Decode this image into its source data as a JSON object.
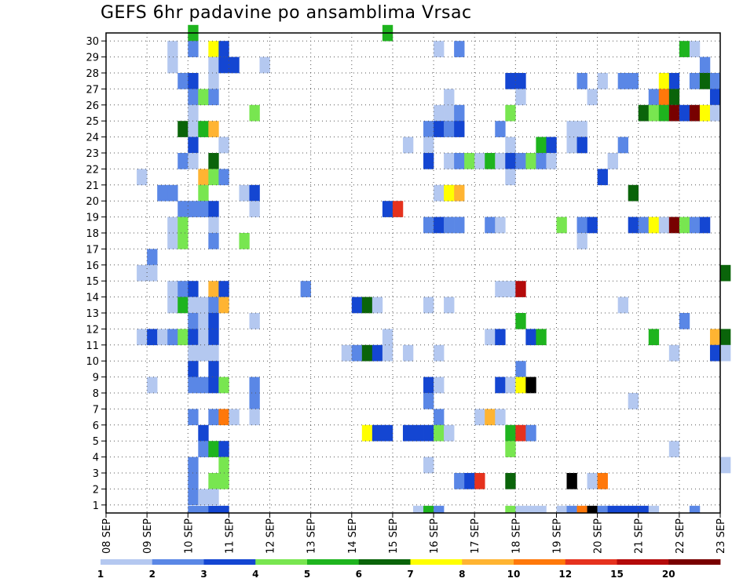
{
  "chart_data": {
    "type": "heatmap",
    "title": "GEFS 6hr padavine po ansamblima Vrsac",
    "xlabel": "",
    "ylabel": "",
    "x_tick_labels": [
      "08 SEP",
      "09 SEP",
      "10 SEP",
      "11 SEP",
      "12 SEP",
      "13 SEP",
      "14 SEP",
      "15 SEP",
      "16 SEP",
      "17 SEP",
      "18 SEP",
      "19 SEP",
      "20 SEP",
      "21 SEP",
      "22 SEP",
      "23 SEP"
    ],
    "y_tick_labels": [
      "1",
      "2",
      "3",
      "4",
      "5",
      "6",
      "7",
      "8",
      "9",
      "10",
      "11",
      "12",
      "13",
      "14",
      "15",
      "16",
      "17",
      "18",
      "19",
      "20",
      "21",
      "22",
      "23",
      "24",
      "25",
      "26",
      "27",
      "28",
      "29",
      "30"
    ],
    "ylim": [
      0,
      30
    ],
    "x_steps_per_day": 4,
    "grid": true,
    "colorbar": {
      "labels": [
        "1",
        "2",
        "3",
        "4",
        "5",
        "6",
        "7",
        "8",
        "10",
        "12",
        "15",
        "20"
      ],
      "colors": [
        "#b4c8f0",
        "#5a87e6",
        "#1446d2",
        "#78e650",
        "#1eb41e",
        "#0a640a",
        "#ffff00",
        "#ffb432",
        "#ff780a",
        "#e6321e",
        "#b40a0a",
        "#780000"
      ]
    },
    "cells": [
      [
        8,
        30,
        5
      ],
      [
        27,
        30,
        5
      ],
      [
        6,
        29,
        1
      ],
      [
        8,
        29,
        2
      ],
      [
        10,
        29,
        7
      ],
      [
        11,
        29,
        3
      ],
      [
        32,
        29,
        1
      ],
      [
        34,
        29,
        2
      ],
      [
        56,
        29,
        5
      ],
      [
        57,
        29,
        1
      ],
      [
        6,
        28,
        1
      ],
      [
        10,
        28,
        1
      ],
      [
        11,
        28,
        3
      ],
      [
        12,
        28,
        3
      ],
      [
        15,
        28,
        1
      ],
      [
        58,
        28,
        2
      ],
      [
        7,
        27,
        2
      ],
      [
        8,
        27,
        3
      ],
      [
        10,
        27,
        1
      ],
      [
        39,
        27,
        3
      ],
      [
        40,
        27,
        3
      ],
      [
        46,
        27,
        2
      ],
      [
        48,
        27,
        1
      ],
      [
        50,
        27,
        2
      ],
      [
        51,
        27,
        2
      ],
      [
        54,
        27,
        7
      ],
      [
        55,
        27,
        3
      ],
      [
        57,
        27,
        2
      ],
      [
        58,
        27,
        6
      ],
      [
        59,
        27,
        2
      ],
      [
        8,
        26,
        2
      ],
      [
        9,
        26,
        4
      ],
      [
        10,
        26,
        2
      ],
      [
        33,
        26,
        1
      ],
      [
        40,
        26,
        1
      ],
      [
        47,
        26,
        1
      ],
      [
        53,
        26,
        2
      ],
      [
        54,
        26,
        9
      ],
      [
        55,
        26,
        6
      ],
      [
        59,
        26,
        3
      ],
      [
        8,
        25,
        1
      ],
      [
        14,
        25,
        4
      ],
      [
        32,
        25,
        1
      ],
      [
        33,
        25,
        1
      ],
      [
        34,
        25,
        2
      ],
      [
        39,
        25,
        4
      ],
      [
        52,
        25,
        6
      ],
      [
        53,
        25,
        4
      ],
      [
        54,
        25,
        5
      ],
      [
        55,
        25,
        12
      ],
      [
        56,
        25,
        3
      ],
      [
        57,
        25,
        12
      ],
      [
        58,
        25,
        7
      ],
      [
        59,
        25,
        1
      ],
      [
        7,
        24,
        6
      ],
      [
        8,
        24,
        1
      ],
      [
        9,
        24,
        5
      ],
      [
        10,
        24,
        8
      ],
      [
        31,
        24,
        2
      ],
      [
        32,
        24,
        3
      ],
      [
        33,
        24,
        2
      ],
      [
        34,
        24,
        3
      ],
      [
        38,
        24,
        2
      ],
      [
        45,
        24,
        1
      ],
      [
        46,
        24,
        1
      ],
      [
        8,
        23,
        3
      ],
      [
        11,
        23,
        1
      ],
      [
        29,
        23,
        1
      ],
      [
        31,
        23,
        1
      ],
      [
        39,
        23,
        1
      ],
      [
        42,
        23,
        5
      ],
      [
        43,
        23,
        3
      ],
      [
        45,
        23,
        1
      ],
      [
        46,
        23,
        3
      ],
      [
        50,
        23,
        2
      ],
      [
        7,
        22,
        2
      ],
      [
        8,
        22,
        1
      ],
      [
        10,
        22,
        6
      ],
      [
        31,
        22,
        3
      ],
      [
        33,
        22,
        1
      ],
      [
        34,
        22,
        2
      ],
      [
        35,
        22,
        4
      ],
      [
        36,
        22,
        1
      ],
      [
        37,
        22,
        5
      ],
      [
        38,
        22,
        1
      ],
      [
        39,
        22,
        3
      ],
      [
        40,
        22,
        2
      ],
      [
        41,
        22,
        4
      ],
      [
        42,
        22,
        2
      ],
      [
        43,
        22,
        1
      ],
      [
        49,
        22,
        1
      ],
      [
        3,
        21,
        1
      ],
      [
        9,
        21,
        8
      ],
      [
        10,
        21,
        4
      ],
      [
        11,
        21,
        2
      ],
      [
        39,
        21,
        1
      ],
      [
        48,
        21,
        3
      ],
      [
        5,
        20,
        2
      ],
      [
        6,
        20,
        2
      ],
      [
        9,
        20,
        4
      ],
      [
        13,
        20,
        1
      ],
      [
        14,
        20,
        3
      ],
      [
        32,
        20,
        1
      ],
      [
        33,
        20,
        7
      ],
      [
        34,
        20,
        8
      ],
      [
        51,
        20,
        6
      ],
      [
        7,
        19,
        2
      ],
      [
        8,
        19,
        2
      ],
      [
        9,
        19,
        2
      ],
      [
        10,
        19,
        3
      ],
      [
        14,
        19,
        1
      ],
      [
        27,
        19,
        3
      ],
      [
        28,
        19,
        10
      ],
      [
        6,
        18,
        1
      ],
      [
        7,
        18,
        4
      ],
      [
        10,
        18,
        1
      ],
      [
        31,
        18,
        2
      ],
      [
        32,
        18,
        3
      ],
      [
        33,
        18,
        2
      ],
      [
        34,
        18,
        2
      ],
      [
        37,
        18,
        2
      ],
      [
        38,
        18,
        1
      ],
      [
        44,
        18,
        4
      ],
      [
        46,
        18,
        2
      ],
      [
        47,
        18,
        3
      ],
      [
        51,
        18,
        3
      ],
      [
        52,
        18,
        2
      ],
      [
        53,
        18,
        7
      ],
      [
        54,
        18,
        1
      ],
      [
        55,
        18,
        12
      ],
      [
        56,
        18,
        4
      ],
      [
        57,
        18,
        2
      ],
      [
        58,
        18,
        3
      ],
      [
        6,
        17,
        1
      ],
      [
        7,
        17,
        4
      ],
      [
        10,
        17,
        2
      ],
      [
        13,
        17,
        4
      ],
      [
        46,
        17,
        1
      ],
      [
        4,
        16,
        2
      ],
      [
        3,
        15,
        1
      ],
      [
        4,
        15,
        1
      ],
      [
        60,
        15,
        6
      ],
      [
        6,
        14,
        1
      ],
      [
        7,
        14,
        2
      ],
      [
        8,
        14,
        3
      ],
      [
        10,
        14,
        8
      ],
      [
        11,
        14,
        3
      ],
      [
        19,
        14,
        2
      ],
      [
        38,
        14,
        1
      ],
      [
        39,
        14,
        1
      ],
      [
        40,
        14,
        11
      ],
      [
        6,
        13,
        1
      ],
      [
        7,
        13,
        5
      ],
      [
        8,
        13,
        1
      ],
      [
        9,
        13,
        1
      ],
      [
        10,
        13,
        2
      ],
      [
        11,
        13,
        8
      ],
      [
        24,
        13,
        3
      ],
      [
        25,
        13,
        6
      ],
      [
        26,
        13,
        1
      ],
      [
        31,
        13,
        1
      ],
      [
        33,
        13,
        1
      ],
      [
        50,
        13,
        1
      ],
      [
        8,
        12,
        2
      ],
      [
        9,
        12,
        1
      ],
      [
        10,
        12,
        3
      ],
      [
        14,
        12,
        1
      ],
      [
        40,
        12,
        5
      ],
      [
        56,
        12,
        2
      ],
      [
        3,
        11,
        1
      ],
      [
        4,
        11,
        3
      ],
      [
        5,
        11,
        1
      ],
      [
        6,
        11,
        2
      ],
      [
        7,
        11,
        4
      ],
      [
        8,
        11,
        3
      ],
      [
        9,
        11,
        1
      ],
      [
        10,
        11,
        3
      ],
      [
        27,
        11,
        1
      ],
      [
        37,
        11,
        1
      ],
      [
        38,
        11,
        3
      ],
      [
        41,
        11,
        3
      ],
      [
        42,
        11,
        5
      ],
      [
        53,
        11,
        5
      ],
      [
        59,
        11,
        8
      ],
      [
        60,
        11,
        6
      ],
      [
        8,
        10,
        1
      ],
      [
        9,
        10,
        1
      ],
      [
        10,
        10,
        1
      ],
      [
        23,
        10,
        1
      ],
      [
        24,
        10,
        2
      ],
      [
        25,
        10,
        6
      ],
      [
        26,
        10,
        3
      ],
      [
        27,
        10,
        1
      ],
      [
        29,
        10,
        1
      ],
      [
        32,
        10,
        1
      ],
      [
        55,
        10,
        1
      ],
      [
        59,
        10,
        3
      ],
      [
        60,
        10,
        1
      ],
      [
        8,
        9,
        3
      ],
      [
        10,
        9,
        3
      ],
      [
        40,
        9,
        2
      ],
      [
        4,
        8,
        1
      ],
      [
        8,
        8,
        2
      ],
      [
        9,
        8,
        2
      ],
      [
        10,
        8,
        3
      ],
      [
        11,
        8,
        4
      ],
      [
        14,
        8,
        2
      ],
      [
        31,
        8,
        3
      ],
      [
        32,
        8,
        1
      ],
      [
        38,
        8,
        3
      ],
      [
        39,
        8,
        1
      ],
      [
        40,
        8,
        7
      ],
      [
        41,
        8,
        13
      ],
      [
        14,
        7,
        2
      ],
      [
        31,
        7,
        2
      ],
      [
        51,
        7,
        1
      ],
      [
        8,
        6,
        2
      ],
      [
        10,
        6,
        2
      ],
      [
        11,
        6,
        9
      ],
      [
        12,
        6,
        1
      ],
      [
        14,
        6,
        1
      ],
      [
        32,
        6,
        2
      ],
      [
        36,
        6,
        1
      ],
      [
        37,
        6,
        8
      ],
      [
        38,
        6,
        1
      ],
      [
        9,
        5,
        3
      ],
      [
        25,
        5,
        7
      ],
      [
        26,
        5,
        3
      ],
      [
        27,
        5,
        3
      ],
      [
        29,
        5,
        3
      ],
      [
        30,
        5,
        3
      ],
      [
        31,
        5,
        3
      ],
      [
        32,
        5,
        4
      ],
      [
        33,
        5,
        1
      ],
      [
        39,
        5,
        5
      ],
      [
        40,
        5,
        10
      ],
      [
        41,
        5,
        2
      ],
      [
        9,
        4,
        2
      ],
      [
        10,
        4,
        5
      ],
      [
        11,
        4,
        3
      ],
      [
        39,
        4,
        4
      ],
      [
        55,
        4,
        1
      ],
      [
        8,
        3,
        2
      ],
      [
        11,
        3,
        4
      ],
      [
        31,
        3,
        1
      ],
      [
        60,
        3,
        1
      ],
      [
        8,
        2,
        2
      ],
      [
        10,
        2,
        4
      ],
      [
        11,
        2,
        4
      ],
      [
        34,
        2,
        2
      ],
      [
        35,
        2,
        3
      ],
      [
        36,
        2,
        10
      ],
      [
        39,
        2,
        6
      ],
      [
        45,
        2,
        13
      ],
      [
        47,
        2,
        1
      ],
      [
        48,
        2,
        9
      ],
      [
        8,
        1,
        2
      ],
      [
        9,
        1,
        1
      ],
      [
        10,
        1,
        1
      ],
      [
        8,
        0,
        2
      ],
      [
        9,
        0,
        2
      ],
      [
        10,
        0,
        3
      ],
      [
        11,
        0,
        3
      ],
      [
        30,
        0,
        1
      ],
      [
        31,
        0,
        5
      ],
      [
        32,
        0,
        2
      ],
      [
        39,
        0,
        4
      ],
      [
        40,
        0,
        1
      ],
      [
        41,
        0,
        1
      ],
      [
        42,
        0,
        1
      ],
      [
        44,
        0,
        1
      ],
      [
        45,
        0,
        2
      ],
      [
        46,
        0,
        9
      ],
      [
        47,
        0,
        13
      ],
      [
        48,
        0,
        2
      ],
      [
        49,
        0,
        3
      ],
      [
        50,
        0,
        3
      ],
      [
        51,
        0,
        3
      ],
      [
        52,
        0,
        3
      ],
      [
        53,
        0,
        1
      ],
      [
        57,
        0,
        2
      ]
    ]
  }
}
